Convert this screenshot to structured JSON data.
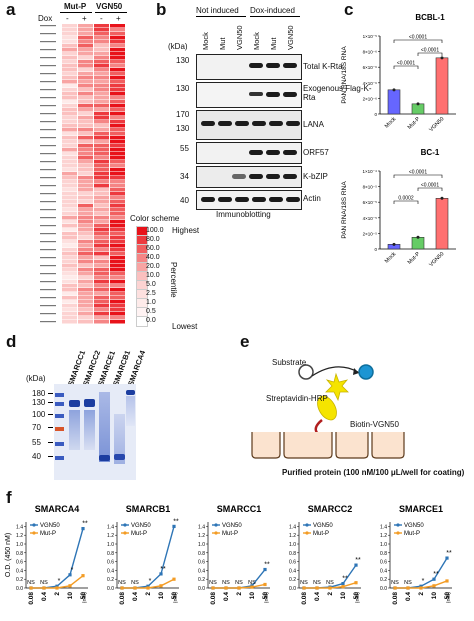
{
  "panel_a": {
    "label": "a",
    "groups": [
      "Mut-P",
      "VGN50"
    ],
    "dox_label": "Dox",
    "dox_states": [
      "-",
      "+",
      "-",
      "+"
    ],
    "color_scheme_title": "Color scheme",
    "highest_label": "Highest",
    "lowest_label": "Lowest",
    "percentile_label": "Percentile",
    "scale": [
      "100.0",
      "80.0",
      "60.0",
      "40.0",
      "20.0",
      "10.0",
      "5.0",
      "2.5",
      "1.0",
      "0.5",
      "0.0"
    ],
    "colors": [
      "#e8121a",
      "#ed3a3f",
      "#f15f60",
      "#f58585",
      "#f8a4a3",
      "#fbc0bf",
      "#fcd3d2",
      "#fde0df",
      "#feebea",
      "#fff3f3",
      "#ffffff"
    ]
  },
  "panel_b": {
    "label": "b",
    "not_induced": "Not induced",
    "dox_induced": "Dox-induced",
    "lanes": [
      "Mock",
      "Mut",
      "VGN50",
      "Mock",
      "Mut",
      "VGN50"
    ],
    "kda_header": "(kDa)",
    "blots": [
      {
        "name": "Total K-Rta",
        "markers": [
          "130"
        ]
      },
      {
        "name": "Exogenous Flag-K-Rta",
        "markers": [
          "130"
        ]
      },
      {
        "name": "LANA",
        "markers": [
          "170",
          "130"
        ]
      },
      {
        "name": "ORF57",
        "markers": [
          "55"
        ]
      },
      {
        "name": "K-bZIP",
        "markers": [
          "34"
        ]
      },
      {
        "name": "Actin",
        "markers": [
          "40"
        ]
      }
    ],
    "footer": "Immunoblotting"
  },
  "panel_c": {
    "label": "c",
    "ylabel": "PAN RNA/18S RNA",
    "xcats": [
      "Mock",
      "Mut-P",
      "VGN50"
    ],
    "charts": [
      {
        "title": "BCBL-1",
        "yticks": [
          "1×10⁻⁵",
          "8×10⁻⁶",
          "6×10⁻⁶",
          "4×10⁻⁶",
          "2×10⁻⁶",
          "0"
        ],
        "pvals": [
          "<0.0001",
          "<0.0001",
          "<0.0001"
        ]
      },
      {
        "title": "BC-1",
        "yticks": [
          "1×10⁻⁴",
          "8×10⁻⁵",
          "6×10⁻⁵",
          "4×10⁻⁵",
          "2×10⁻⁵",
          "0"
        ],
        "pvals": [
          "0.0002",
          "<0.0001",
          "<0.0001"
        ]
      }
    ],
    "colors": [
      "#6666ff",
      "#66cc66",
      "#ff7070"
    ]
  },
  "panel_d": {
    "label": "d",
    "kda_header": "(kDa)",
    "lanes": [
      "SMARCC1",
      "SMARCC2",
      "SMARCE1",
      "SMARCB1",
      "SMARCA4"
    ],
    "markers": [
      "180",
      "130",
      "100",
      "70",
      "55",
      "40"
    ]
  },
  "panel_e": {
    "label": "e",
    "substrate": "Substrate",
    "hrp": "Streptavidin-HRP",
    "biotin": "Biotin-VGN50",
    "purified": "Purified protein (100 nM/100 μL/well for coating)"
  },
  "panel_f": {
    "label": "f",
    "ylabel": "O.D. (450 nM)",
    "xunit": "(nM)",
    "series_names": [
      "VGN50",
      "Mut-P"
    ],
    "colors": [
      "#2e75b6",
      "#f39c25"
    ],
    "yticks": [
      "1.4",
      "1.2",
      "1.0",
      "0.8",
      "0.6",
      "0.4",
      "0.2",
      "0.0"
    ],
    "xticks": [
      "0.08",
      "0.4",
      "2",
      "10",
      "50"
    ],
    "ns_label": "NS"
  },
  "chart_data": [
    {
      "type": "bar",
      "title": "BCBL-1",
      "ylabel": "PAN RNA/18S RNA",
      "categories": [
        "Mock",
        "Mut-P",
        "VGN50"
      ],
      "values": [
        3.1e-06,
        1.3e-06,
        7.2e-06
      ],
      "ylim": [
        0,
        1e-05
      ]
    },
    {
      "type": "bar",
      "title": "BC-1",
      "ylabel": "PAN RNA/18S RNA",
      "categories": [
        "Mock",
        "Mut-P",
        "VGN50"
      ],
      "values": [
        6e-06,
        1.5e-05,
        6.5e-05
      ],
      "ylim": [
        0,
        0.0001
      ]
    },
    {
      "type": "line",
      "title": "SMARCA4",
      "x": [
        "0.08",
        "0.4",
        "2",
        "10",
        "50"
      ],
      "ylim": [
        0,
        1.5
      ],
      "series": [
        {
          "name": "VGN50",
          "values": [
            0.0,
            0.0,
            0.04,
            0.3,
            1.35
          ]
        },
        {
          "name": "Mut-P",
          "values": [
            0.0,
            0.0,
            0.0,
            0.05,
            0.28
          ]
        }
      ],
      "annotations": [
        "NS",
        "NS",
        "*",
        "*",
        "**"
      ]
    },
    {
      "type": "line",
      "title": "SMARCB1",
      "x": [
        "0.08",
        "0.4",
        "2",
        "10",
        "50"
      ],
      "ylim": [
        0,
        1.5
      ],
      "series": [
        {
          "name": "VGN50",
          "values": [
            0.0,
            0.0,
            0.04,
            0.32,
            1.4
          ]
        },
        {
          "name": "Mut-P",
          "values": [
            0.0,
            0.0,
            0.0,
            0.05,
            0.2
          ]
        }
      ],
      "annotations": [
        "NS",
        "NS",
        "*",
        "**",
        "**"
      ]
    },
    {
      "type": "line",
      "title": "SMARCC1",
      "x": [
        "0.08",
        "0.4",
        "2",
        "10",
        "50"
      ],
      "ylim": [
        0,
        1.5
      ],
      "series": [
        {
          "name": "VGN50",
          "values": [
            0.0,
            0.0,
            0.0,
            0.05,
            0.42
          ]
        },
        {
          "name": "Mut-P",
          "values": [
            0.0,
            0.0,
            0.0,
            0.02,
            0.08
          ]
        }
      ],
      "annotations": [
        "NS",
        "NS",
        "NS",
        "NS",
        "**"
      ]
    },
    {
      "type": "line",
      "title": "SMARCC2",
      "x": [
        "0.08",
        "0.4",
        "2",
        "10",
        "50"
      ],
      "ylim": [
        0,
        1.5
      ],
      "series": [
        {
          "name": "VGN50",
          "values": [
            0.0,
            0.0,
            0.02,
            0.1,
            0.52
          ]
        },
        {
          "name": "Mut-P",
          "values": [
            0.0,
            0.0,
            0.0,
            0.03,
            0.12
          ]
        }
      ],
      "annotations": [
        "NS",
        "NS",
        "NS",
        "**",
        "**"
      ]
    },
    {
      "type": "line",
      "title": "SMARCE1",
      "x": [
        "0.08",
        "0.4",
        "2",
        "10",
        "50"
      ],
      "ylim": [
        0,
        1.5
      ],
      "series": [
        {
          "name": "VGN50",
          "values": [
            0.0,
            0.0,
            0.04,
            0.2,
            0.68
          ]
        },
        {
          "name": "Mut-P",
          "values": [
            0.0,
            0.0,
            0.0,
            0.05,
            0.16
          ]
        }
      ],
      "annotations": [
        "NS",
        "NS",
        "*",
        "**",
        "**"
      ]
    }
  ]
}
